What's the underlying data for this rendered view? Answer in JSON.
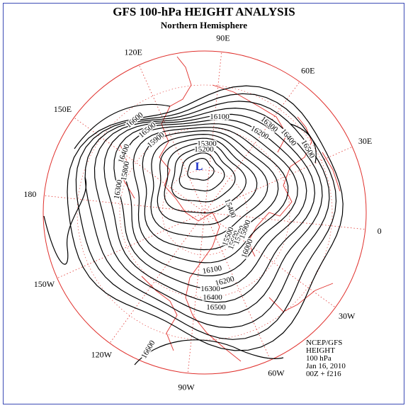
{
  "header": {
    "title": "GFS 100-hPa HEIGHT ANALYSIS",
    "subtitle": "Northern Hemisphere"
  },
  "longitude_labels": [
    "90E",
    "60E",
    "30E",
    "0",
    "30W",
    "60W",
    "90W",
    "120W",
    "150W",
    "180",
    "150E",
    "120E"
  ],
  "low_marker": "L",
  "contour_labels": [
    16600,
    16500,
    16400,
    16300,
    15900,
    15800,
    16100,
    16200,
    16300,
    16400,
    16500,
    15300,
    15200,
    15400,
    15500,
    15600,
    15700,
    15900,
    16000,
    16100,
    16200,
    16300,
    16400,
    16500,
    16600
  ],
  "info": [
    "NCEP/GFS",
    "HEIGHT",
    "100 hPa",
    "Jan 16, 2010",
    "00Z + f216"
  ]
}
